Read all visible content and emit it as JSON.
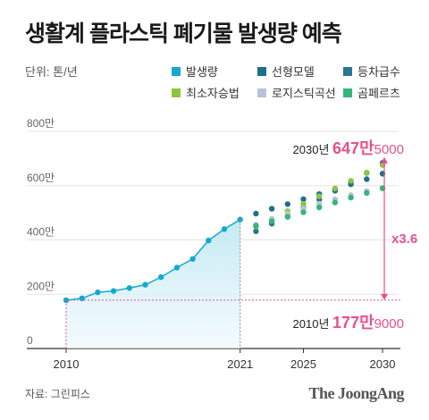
{
  "title": "생활계 플라스틱 폐기물 발생량 예측",
  "unit": "단위: 톤/년",
  "source": "자료: 그린피스",
  "brand": "The JoongAng",
  "legend": [
    {
      "name": "발생량",
      "color": "#13a9cf"
    },
    {
      "name": "선형모델",
      "color": "#1f6f8b"
    },
    {
      "name": "등차급수",
      "color": "#2a7590"
    },
    {
      "name": "최소자승법",
      "color": "#8cc63f"
    },
    {
      "name": "로지스틱곡선",
      "color": "#b8c4d6"
    },
    {
      "name": "곰페르츠",
      "color": "#36b57a"
    }
  ],
  "annotations": {
    "top": {
      "year": "2030년 ",
      "bold": "647만",
      "rest": "5000"
    },
    "bottom": {
      "year": "2010년 ",
      "bold": "177만",
      "rest": "9000"
    },
    "ratio": "x3.6"
  },
  "chart_data": {
    "type": "line",
    "title": "생활계 플라스틱 폐기물 발생량 예측",
    "xlabel": "",
    "ylabel": "",
    "ylim": [
      0,
      800
    ],
    "xlim": [
      2010,
      2030
    ],
    "x_ticks": [
      "2010",
      "2021",
      "2025",
      "2030"
    ],
    "y_ticks": [
      {
        "value": 0,
        "label": "0"
      },
      {
        "value": 200,
        "label": "200만"
      },
      {
        "value": 400,
        "label": "400만"
      },
      {
        "value": 600,
        "label": "600만"
      },
      {
        "value": 800,
        "label": "800만"
      }
    ],
    "series": [
      {
        "name": "발생량",
        "color": "#13a9cf",
        "style": "line-area",
        "x": [
          2010,
          2011,
          2012,
          2013,
          2014,
          2015,
          2016,
          2017,
          2018,
          2019,
          2020,
          2021
        ],
        "values": [
          178,
          185,
          207,
          212,
          223,
          235,
          263,
          298,
          330,
          398,
          440,
          475
        ]
      },
      {
        "name": "선형모델",
        "color": "#1f6f8b",
        "style": "dot",
        "x": [
          2022,
          2023,
          2024,
          2025,
          2026,
          2027,
          2028,
          2029,
          2030
        ],
        "values": [
          497,
          515,
          532,
          550,
          569,
          587,
          605,
          624,
          644
        ]
      },
      {
        "name": "등차급수",
        "color": "#2a7590",
        "style": "dot",
        "x": [
          2022,
          2023,
          2024,
          2025,
          2026,
          2027,
          2028,
          2029,
          2030
        ],
        "values": [
          432,
          460,
          488,
          519,
          549,
          581,
          613,
          647,
          684
        ]
      },
      {
        "name": "최소자승법",
        "color": "#8cc63f",
        "style": "dot",
        "x": [
          2022,
          2023,
          2024,
          2025,
          2026,
          2027,
          2028,
          2029,
          2030
        ],
        "values": [
          450,
          477,
          506,
          533,
          561,
          590,
          618,
          648,
          676
        ]
      },
      {
        "name": "로지스틱곡선",
        "color": "#b8c4d6",
        "style": "dot",
        "x": [
          2022,
          2023,
          2024,
          2025,
          2026,
          2027,
          2028,
          2029,
          2030
        ],
        "values": [
          456,
          477,
          497,
          515,
          533,
          550,
          565,
          580,
          592
        ]
      },
      {
        "name": "곰페르츠",
        "color": "#36b57a",
        "style": "dot",
        "x": [
          2022,
          2023,
          2024,
          2025,
          2026,
          2027,
          2028,
          2029,
          2030
        ],
        "values": [
          452,
          469,
          485,
          502,
          520,
          538,
          556,
          573,
          590
        ]
      }
    ]
  }
}
